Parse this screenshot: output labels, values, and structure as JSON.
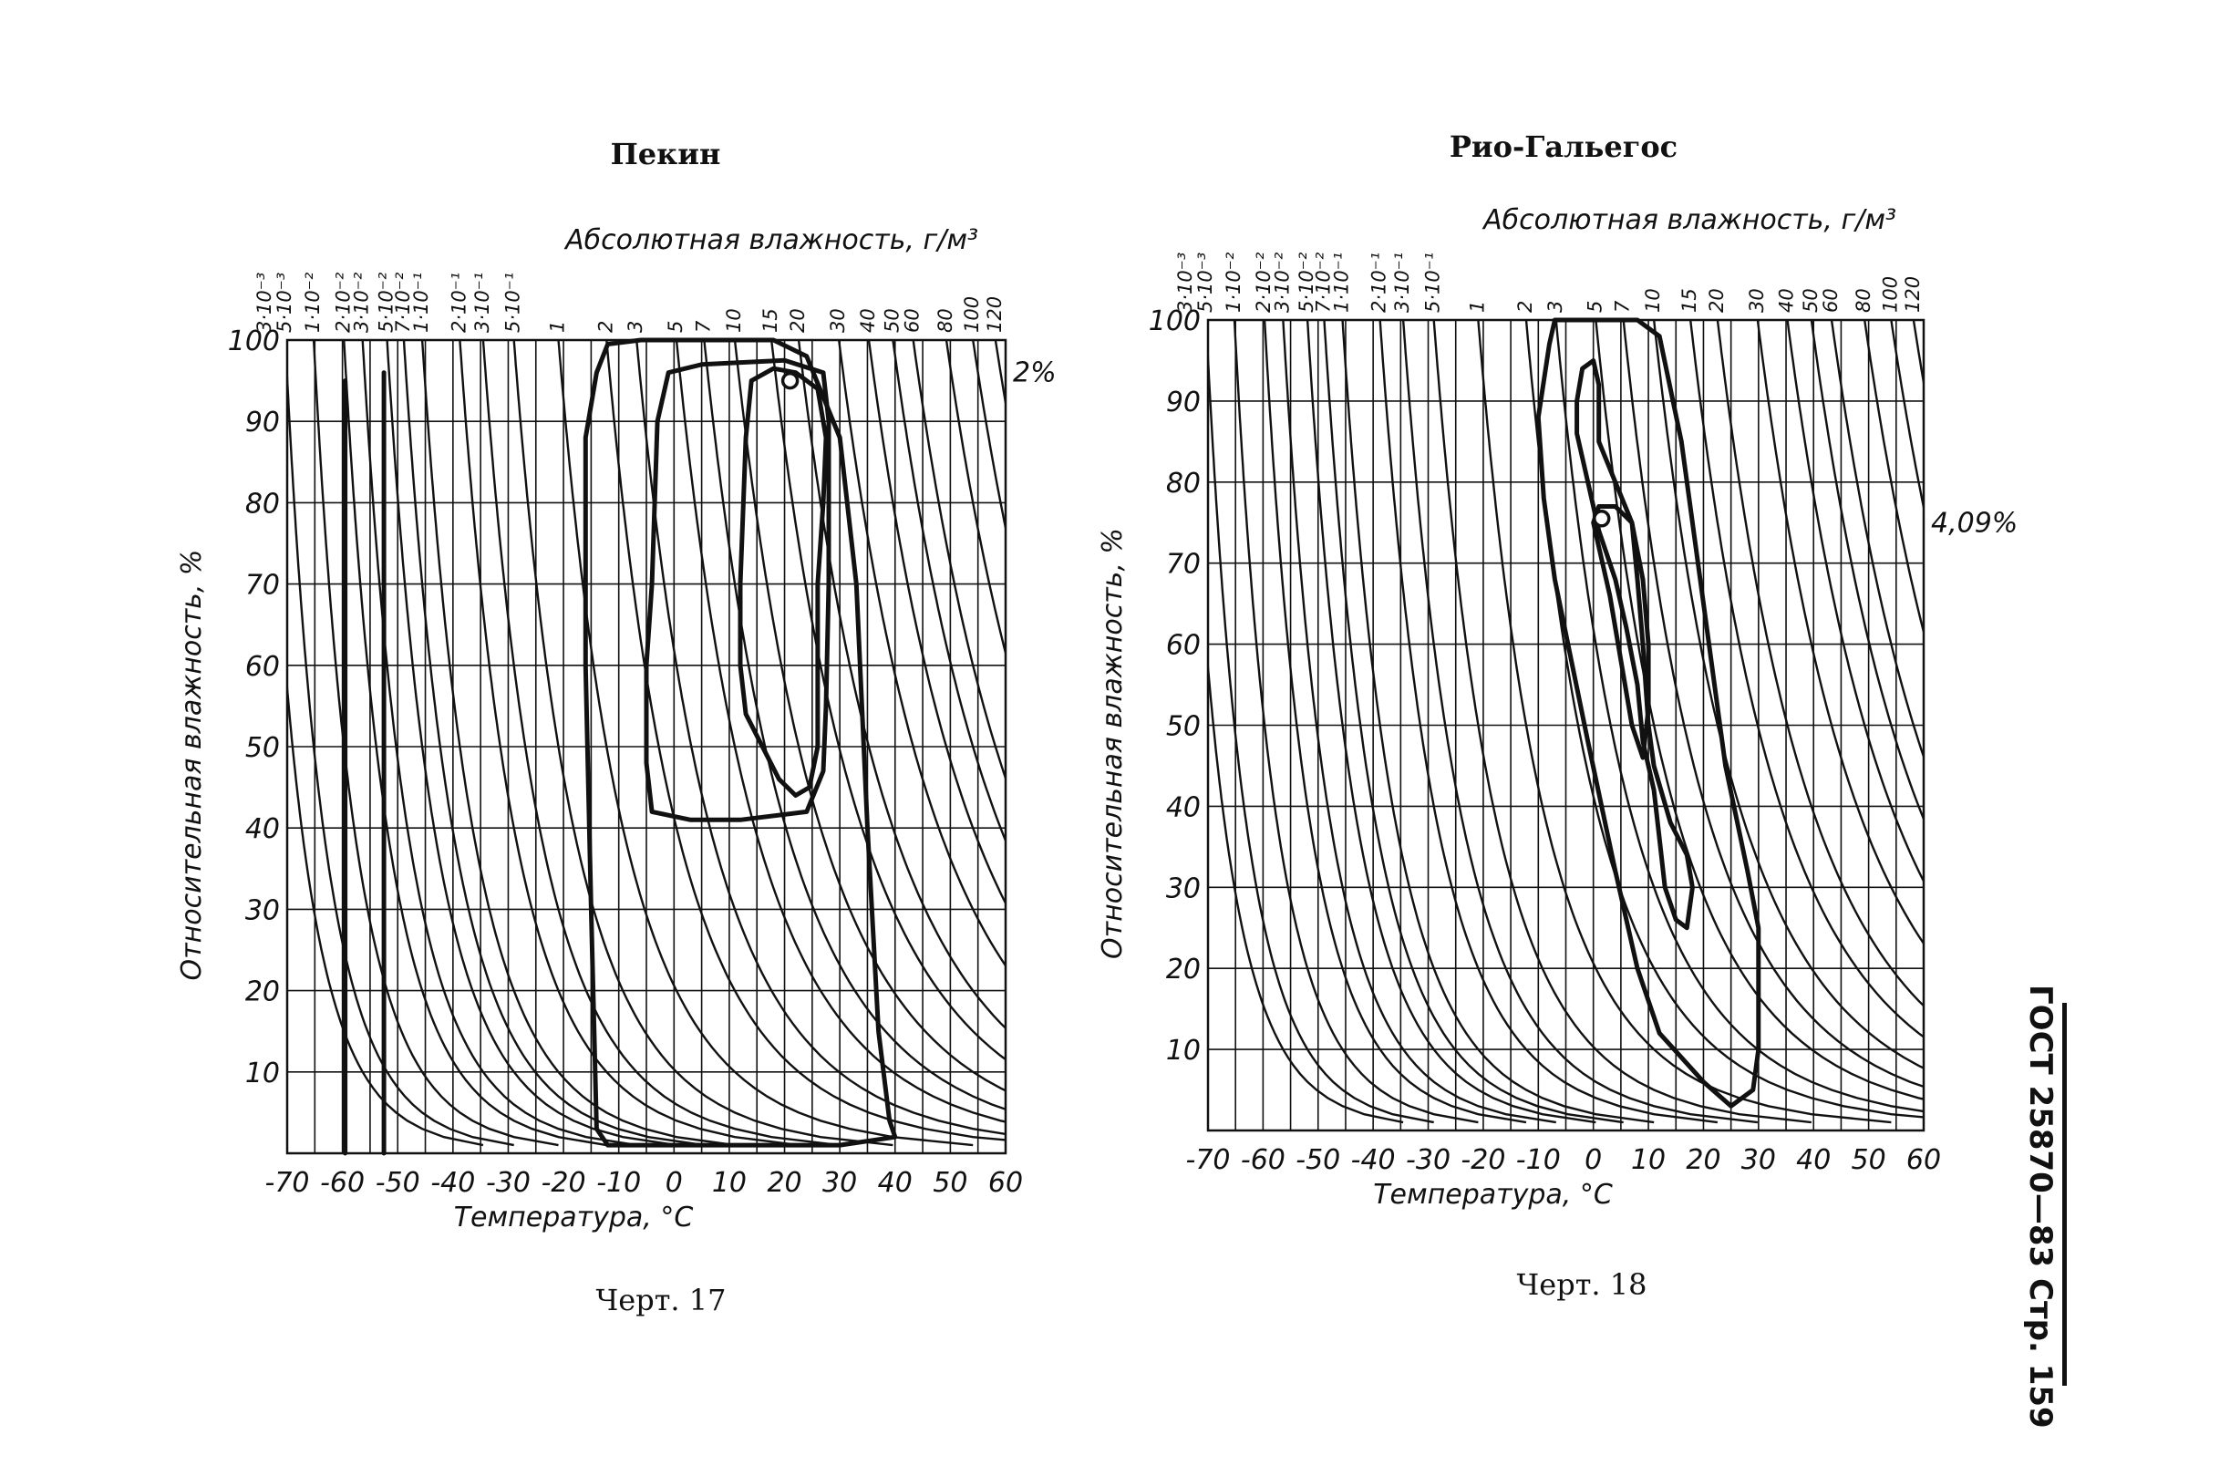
{
  "page": {
    "side_label": "ГОСТ 25870—83 Стр. 159"
  },
  "chart_data": [
    {
      "type": "line",
      "title": "Пекин",
      "caption": "Черт. 17",
      "xlabel": "Температура, °C",
      "ylabel": "Относительная влажность, %",
      "top_axis_label": "Абсолютная влажность, г/м³",
      "xlim": [
        -70,
        60
      ],
      "ylim": [
        0,
        100
      ],
      "x_ticks": [
        "-70",
        "-60",
        "-50",
        "-40",
        "-30",
        "-20",
        "-10",
        "0",
        "10",
        "20",
        "30",
        "40",
        "50",
        "60"
      ],
      "y_ticks": [
        "10",
        "20",
        "30",
        "40",
        "50",
        "60",
        "70",
        "80",
        "90",
        "100"
      ],
      "grid": true,
      "abs_humidity_lines": [
        "3·10⁻³",
        "5·10⁻³",
        "1·10⁻²",
        "2·10⁻²",
        "3·10⁻²",
        "5·10⁻²",
        "7·10⁻²",
        "1·10⁻¹",
        "2·10⁻¹",
        "3·10⁻¹",
        "5·10⁻¹",
        "1",
        "2",
        "3",
        "5",
        "7",
        "10",
        "15",
        "20",
        "30",
        "40",
        "50",
        "60",
        "80",
        "100",
        "120"
      ],
      "abs_humidity_values": [
        0.003,
        0.005,
        0.01,
        0.02,
        0.03,
        0.05,
        0.07,
        0.1,
        0.2,
        0.3,
        0.5,
        1,
        2,
        3,
        5,
        7,
        10,
        15,
        20,
        30,
        40,
        50,
        60,
        80,
        100,
        120
      ],
      "annotation": "2%",
      "annotation_rh": 96,
      "series": [
        {
          "points": [
            [
              -14,
              96
            ],
            [
              -12,
              99.5
            ],
            [
              -6,
              100
            ],
            [
              18,
              100
            ],
            [
              24,
              98
            ],
            [
              30,
              88
            ],
            [
              33,
              70
            ],
            [
              35,
              40
            ],
            [
              37,
              15
            ],
            [
              39,
              4
            ],
            [
              40,
              2
            ],
            [
              30,
              1
            ],
            [
              10,
              1
            ],
            [
              -4,
              1
            ],
            [
              -12,
              1
            ],
            [
              -14,
              3
            ],
            [
              -15,
              30
            ],
            [
              -16,
              60
            ],
            [
              -16,
              88
            ],
            [
              -14,
              96
            ]
          ]
        },
        {
          "points": [
            [
              -4,
              70
            ],
            [
              -3,
              90
            ],
            [
              -1,
              96
            ],
            [
              5,
              97
            ],
            [
              20,
              97.5
            ],
            [
              27,
              96
            ],
            [
              28,
              90
            ],
            [
              28,
              70
            ],
            [
              27.5,
              55
            ],
            [
              27,
              47
            ],
            [
              24,
              42
            ],
            [
              12,
              41
            ],
            [
              3,
              41
            ],
            [
              -4,
              42
            ],
            [
              -5,
              48
            ],
            [
              -5,
              60
            ],
            [
              -4,
              70
            ]
          ]
        },
        {
          "points": [
            [
              12,
              70
            ],
            [
              13,
              88
            ],
            [
              14,
              95
            ],
            [
              18,
              96.5
            ],
            [
              22,
              96
            ],
            [
              26,
              94
            ],
            [
              27.5,
              88
            ],
            [
              27,
              80
            ],
            [
              26,
              70
            ],
            [
              26,
              60
            ],
            [
              26,
              50
            ],
            [
              24.5,
              45
            ],
            [
              22,
              44
            ],
            [
              19,
              46
            ],
            [
              13,
              54
            ],
            [
              12,
              60
            ],
            [
              12,
              70
            ]
          ]
        },
        {
          "points": [
            [
              -59.5,
              95
            ],
            [
              -59.5,
              0
            ]
          ]
        },
        {
          "points": [
            [
              -52.5,
              96
            ],
            [
              -52.5,
              0
            ]
          ]
        }
      ],
      "marker": [
        21,
        95
      ]
    },
    {
      "type": "line",
      "title": "Рио-Гальегос",
      "caption": "Черт. 18",
      "xlabel": "Температура, °C",
      "ylabel": "Относительная влажность, %",
      "top_axis_label": "Абсолютная влажность, г/м³",
      "xlim": [
        -70,
        60
      ],
      "ylim": [
        0,
        100
      ],
      "x_ticks": [
        "-70",
        "-60",
        "-50",
        "-40",
        "-30",
        "-20",
        "-10",
        "0",
        "10",
        "20",
        "30",
        "40",
        "50",
        "60"
      ],
      "y_ticks": [
        "10",
        "20",
        "30",
        "40",
        "50",
        "60",
        "70",
        "80",
        "90",
        "100"
      ],
      "grid": true,
      "abs_humidity_lines": [
        "3·10⁻³",
        "5·10⁻³",
        "1·10⁻²",
        "2·10⁻²",
        "3·10⁻²",
        "5·10⁻²",
        "7·10⁻²",
        "1·10⁻¹",
        "2·10⁻¹",
        "3·10⁻¹",
        "5·10⁻¹",
        "1",
        "2",
        "3",
        "5",
        "7",
        "10",
        "15",
        "20",
        "30",
        "40",
        "50",
        "60",
        "80",
        "100",
        "120"
      ],
      "abs_humidity_values": [
        0.003,
        0.005,
        0.01,
        0.02,
        0.03,
        0.05,
        0.07,
        0.1,
        0.2,
        0.3,
        0.5,
        1,
        2,
        3,
        5,
        7,
        10,
        15,
        20,
        30,
        40,
        50,
        60,
        80,
        100,
        120
      ],
      "annotation": "4,09%",
      "annotation_rh": 75,
      "series": [
        {
          "points": [
            [
              -8,
              97
            ],
            [
              -7,
              100
            ],
            [
              8,
              100
            ],
            [
              12,
              98
            ],
            [
              16,
              85
            ],
            [
              20,
              65
            ],
            [
              24,
              45
            ],
            [
              28,
              32
            ],
            [
              30,
              25
            ],
            [
              30,
              10
            ],
            [
              29,
              5
            ],
            [
              25,
              3
            ],
            [
              20,
              6
            ],
            [
              12,
              12
            ],
            [
              8,
              20
            ],
            [
              4,
              32
            ],
            [
              -1,
              48
            ],
            [
              -4,
              58
            ],
            [
              -7,
              68
            ],
            [
              -9,
              78
            ],
            [
              -10,
              88
            ],
            [
              -8,
              97
            ]
          ]
        },
        {
          "points": [
            [
              -3,
              90
            ],
            [
              -2,
              94
            ],
            [
              0,
              95
            ],
            [
              1,
              92
            ],
            [
              1,
              85
            ],
            [
              4,
              80
            ],
            [
              7,
              75
            ],
            [
              8,
              68
            ],
            [
              9,
              60
            ],
            [
              10,
              50
            ],
            [
              11,
              45
            ],
            [
              14,
              38
            ],
            [
              17,
              34
            ],
            [
              18,
              30
            ],
            [
              17,
              25
            ],
            [
              15,
              26
            ],
            [
              13,
              30
            ],
            [
              12,
              36
            ],
            [
              11,
              42
            ],
            [
              9,
              48
            ],
            [
              8,
              55
            ],
            [
              6,
              62
            ],
            [
              4,
              68
            ],
            [
              1,
              74
            ],
            [
              -1,
              80
            ],
            [
              -3,
              86
            ],
            [
              -3,
              90
            ]
          ]
        },
        {
          "points": [
            [
              0,
              75
            ],
            [
              1,
              77
            ],
            [
              4,
              77
            ],
            [
              7,
              75
            ],
            [
              9,
              68
            ],
            [
              10,
              60
            ],
            [
              10,
              52
            ],
            [
              9,
              46
            ],
            [
              7,
              50
            ],
            [
              5,
              58
            ],
            [
              3,
              66
            ],
            [
              1,
              72
            ],
            [
              0,
              75
            ]
          ]
        }
      ],
      "marker": [
        1.5,
        75.5
      ]
    }
  ]
}
